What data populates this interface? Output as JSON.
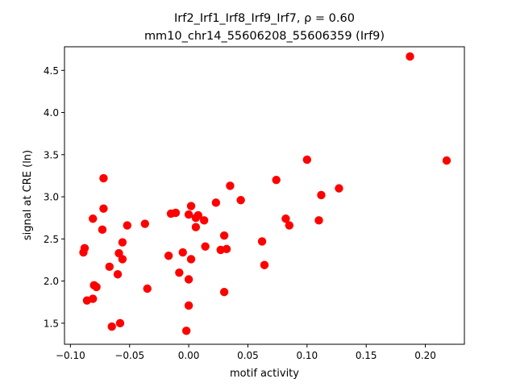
{
  "chart_data": {
    "type": "scatter",
    "title_line1": "Irf2_Irf1_Irf8_Irf9_Irf7, ρ = 0.60",
    "title_line2": "mm10_chr14_55606208_55606359 (Irf9)",
    "xlabel": "motif activity",
    "ylabel": "signal at CRE (ln)",
    "xlim": [
      -0.105,
      0.233
    ],
    "ylim": [
      1.25,
      4.78
    ],
    "xticks": [
      -0.1,
      -0.05,
      0.0,
      0.05,
      0.1,
      0.15,
      0.2
    ],
    "xtick_labels": [
      "−0.10",
      "−0.05",
      "0.00",
      "0.05",
      "0.10",
      "0.15",
      "0.20"
    ],
    "yticks": [
      1.5,
      2.0,
      2.5,
      3.0,
      3.5,
      4.0,
      4.5
    ],
    "ytick_labels": [
      "1.5",
      "2.0",
      "2.5",
      "3.0",
      "3.5",
      "4.0",
      "4.5"
    ],
    "grid": false,
    "marker_color": "#ff0000",
    "points": [
      [
        0.187,
        4.665
      ],
      [
        0.218,
        3.43
      ],
      [
        0.1,
        3.44
      ],
      [
        0.127,
        3.1
      ],
      [
        0.112,
        3.02
      ],
      [
        0.074,
        3.2
      ],
      [
        0.035,
        3.13
      ],
      [
        0.044,
        2.96
      ],
      [
        0.023,
        2.93
      ],
      [
        -0.072,
        3.22
      ],
      [
        -0.072,
        2.86
      ],
      [
        -0.081,
        2.74
      ],
      [
        -0.073,
        2.61
      ],
      [
        -0.052,
        2.66
      ],
      [
        -0.037,
        2.68
      ],
      [
        -0.015,
        2.8
      ],
      [
        -0.011,
        2.81
      ],
      [
        0.002,
        2.89
      ],
      [
        0.0,
        2.79
      ],
      [
        0.006,
        2.75
      ],
      [
        0.008,
        2.78
      ],
      [
        0.013,
        2.72
      ],
      [
        0.006,
        2.64
      ],
      [
        -0.088,
        2.39
      ],
      [
        -0.089,
        2.34
      ],
      [
        -0.056,
        2.46
      ],
      [
        -0.059,
        2.33
      ],
      [
        -0.056,
        2.26
      ],
      [
        -0.067,
        2.17
      ],
      [
        -0.06,
        2.08
      ],
      [
        -0.035,
        1.91
      ],
      [
        -0.08,
        1.95
      ],
      [
        -0.078,
        1.93
      ],
      [
        -0.086,
        1.77
      ],
      [
        -0.081,
        1.79
      ],
      [
        -0.065,
        1.46
      ],
      [
        -0.058,
        1.5
      ],
      [
        -0.017,
        2.3
      ],
      [
        -0.005,
        2.34
      ],
      [
        0.002,
        2.26
      ],
      [
        -0.008,
        2.1
      ],
      [
        0.0,
        2.02
      ],
      [
        0.0,
        1.71
      ],
      [
        -0.002,
        1.41
      ],
      [
        0.014,
        2.41
      ],
      [
        0.03,
        2.54
      ],
      [
        0.027,
        2.37
      ],
      [
        0.032,
        2.38
      ],
      [
        0.03,
        1.87
      ],
      [
        0.062,
        2.47
      ],
      [
        0.064,
        2.19
      ],
      [
        0.082,
        2.74
      ],
      [
        0.085,
        2.66
      ],
      [
        0.11,
        2.72
      ]
    ]
  }
}
